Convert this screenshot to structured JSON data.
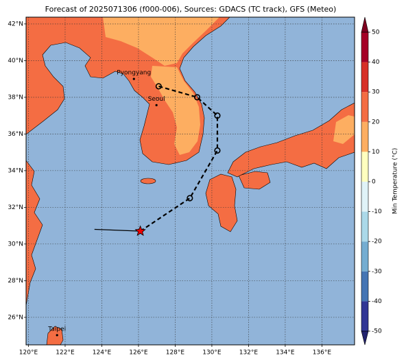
{
  "chart_data": {
    "type": "map",
    "title": "Forecast of 2025071306 (f000-006), Sources: GDACS (TC track), GFS (Meteo)",
    "lon_range": [
      119.87,
      137.78
    ],
    "lat_range": [
      24.5,
      42.37
    ],
    "xticks": [
      {
        "value": 120,
        "label": "120°E"
      },
      {
        "value": 122,
        "label": "122°E"
      },
      {
        "value": 124,
        "label": "124°E"
      },
      {
        "value": 126,
        "label": "126°E"
      },
      {
        "value": 128,
        "label": "128°E"
      },
      {
        "value": 130,
        "label": "130°E"
      },
      {
        "value": 132,
        "label": "132°E"
      },
      {
        "value": 134,
        "label": "134°E"
      },
      {
        "value": 136,
        "label": "136°E"
      }
    ],
    "yticks": [
      {
        "value": 26,
        "label": "26°N"
      },
      {
        "value": 28,
        "label": "28°N"
      },
      {
        "value": 30,
        "label": "30°N"
      },
      {
        "value": 32,
        "label": "32°N"
      },
      {
        "value": 34,
        "label": "34°N"
      },
      {
        "value": 36,
        "label": "36°N"
      },
      {
        "value": 38,
        "label": "38°N"
      },
      {
        "value": 40,
        "label": "40°N"
      },
      {
        "value": 42,
        "label": "42°N"
      }
    ],
    "grid": true,
    "cities": [
      {
        "name": "Pyongyang",
        "lon": 125.75,
        "lat": 39.0
      },
      {
        "name": "Seoul",
        "lon": 126.98,
        "lat": 37.57
      },
      {
        "name": "Taipei",
        "lon": 121.56,
        "lat": 25.03
      }
    ],
    "track_past": {
      "lon": [
        123.6,
        126.1
      ],
      "lat": [
        30.8,
        30.7
      ]
    },
    "track_forecast": {
      "lon": [
        126.1,
        128.8,
        130.3,
        130.3,
        129.2,
        127.1
      ],
      "lat": [
        30.7,
        32.5,
        35.1,
        37.0,
        38.0,
        38.6
      ]
    },
    "colorbar": {
      "label": "Min Temperature (°C)",
      "lim": [
        -50,
        50
      ],
      "ticks": [
        -50,
        -40,
        -30,
        -20,
        -10,
        0,
        10,
        20,
        30,
        40,
        50
      ],
      "colors": [
        "#313695",
        "#4575b4",
        "#74add1",
        "#abd9e9",
        "#e0f3f8",
        "#ffffbf",
        "#fdae61",
        "#f46d43",
        "#d73027",
        "#a50026"
      ],
      "under_color": "#23236e",
      "over_color": "#7f0020"
    }
  }
}
